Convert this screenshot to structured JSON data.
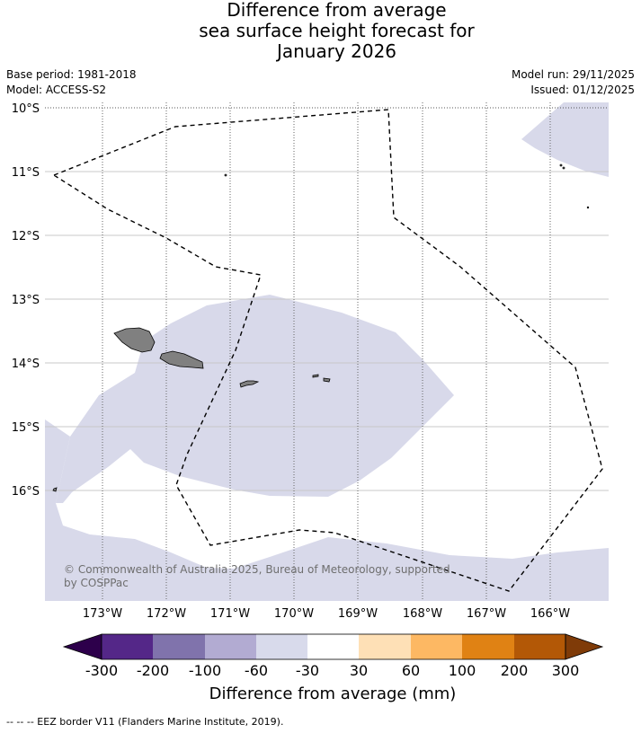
{
  "title": {
    "line1": "Difference from average",
    "line2": "sea surface height forecast for",
    "line3": "January 2026"
  },
  "meta": {
    "base_period": "Base period: 1981-2018",
    "model": "Model: ACCESS-S2",
    "model_run": "Model run: 29/11/2025",
    "issued": "Issued: 01/12/2025"
  },
  "map": {
    "lat_labels": [
      "10°S",
      "11°S",
      "12°S",
      "13°S",
      "14°S",
      "15°S",
      "16°S"
    ],
    "lon_labels": [
      "173°W",
      "172°W",
      "171°W",
      "170°W",
      "169°W",
      "168°W",
      "167°W",
      "166°W"
    ],
    "copyright_line1": "© Commonwealth of Australia 2025, Bureau of Meteorology, supported",
    "copyright_line2": "by COSPPac",
    "anomaly_fill_color": "#d8d9ea",
    "land_color": "#808080"
  },
  "colorbar": {
    "tick_labels": [
      "-300",
      "-200",
      "-100",
      "-60",
      "-30",
      "30",
      "60",
      "100",
      "200",
      "300"
    ],
    "colors": [
      "#2d004b",
      "#542788",
      "#8073ac",
      "#b2abd2",
      "#d8daeb",
      "#ffffff",
      "#fee0b6",
      "#fdb863",
      "#e08214",
      "#b35806",
      "#7f3b08"
    ],
    "label": "Difference from average (mm)"
  },
  "legend": {
    "eez": "-- -- -- EEZ border V11 (Flanders Marine Institute, 2019)."
  }
}
